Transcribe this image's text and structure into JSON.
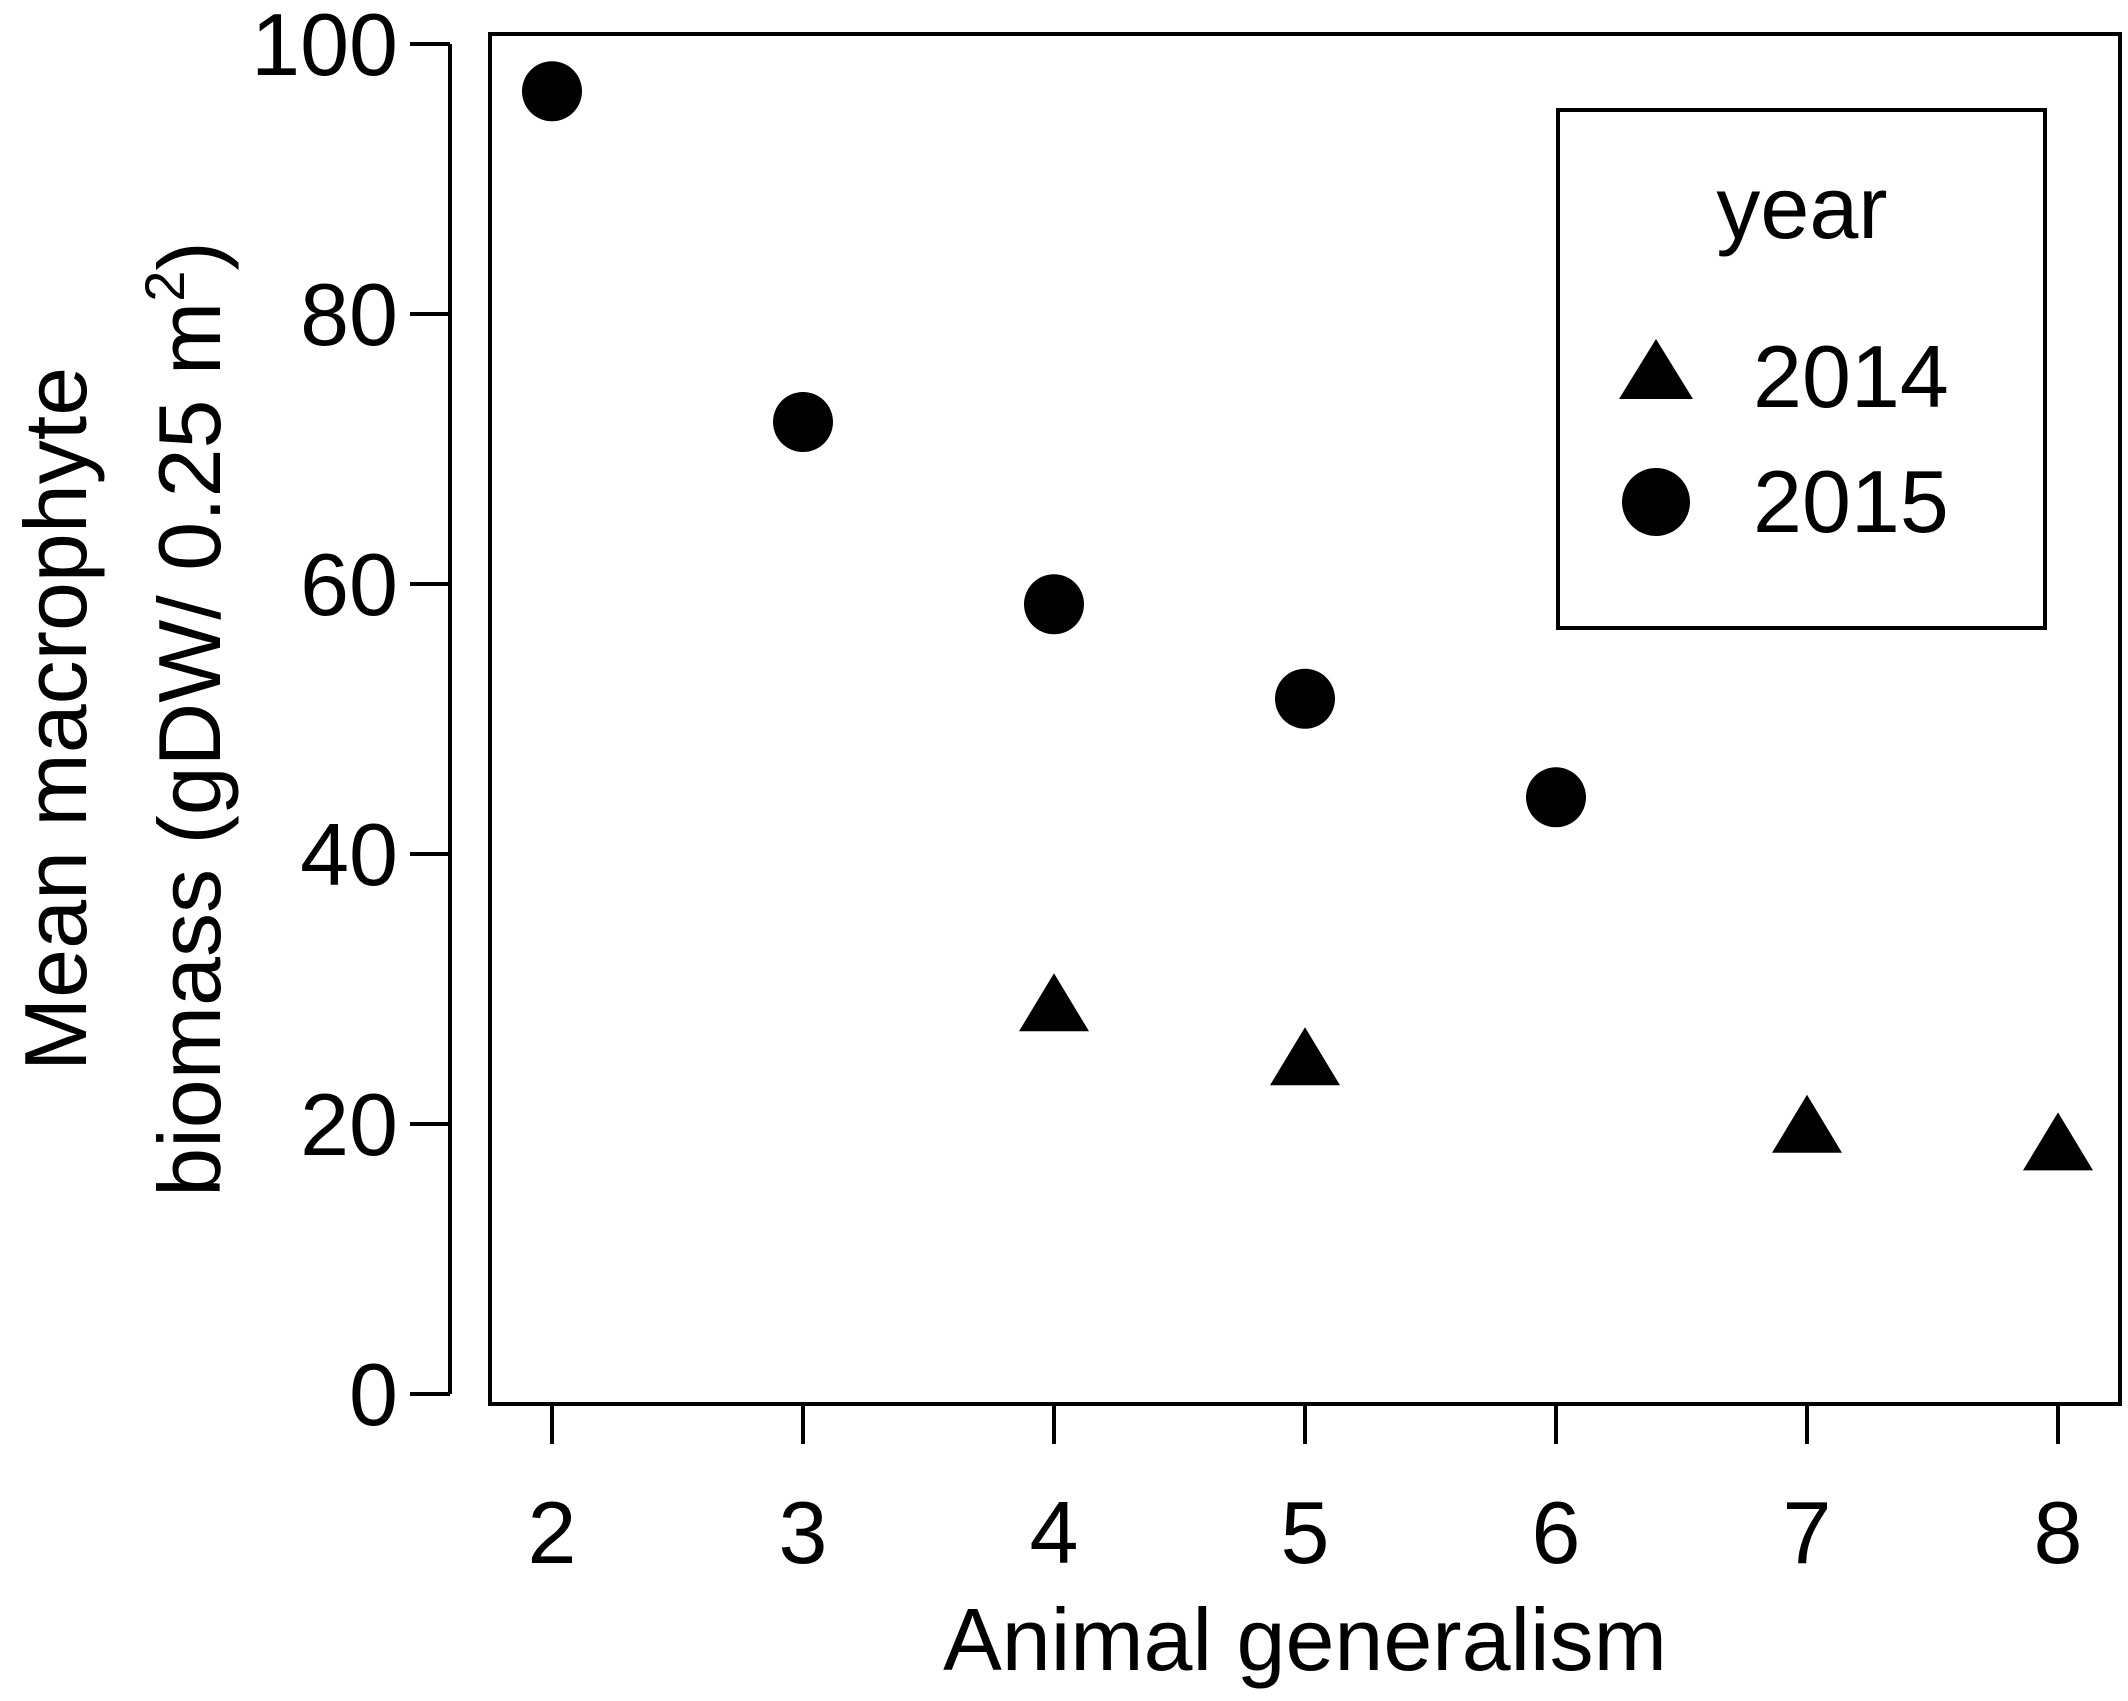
{
  "chart_data": {
    "type": "scatter",
    "xlabel": "Animal generalism",
    "ylabel_line1": "Mean macrophyte",
    "ylabel_line2_main": "biomass (gDW/ 0.25 m",
    "ylabel_line2_sup": "2",
    "ylabel_line2_end": ")",
    "xlim": [
      2,
      8
    ],
    "ylim": [
      0,
      100
    ],
    "xticks": [
      2,
      3,
      4,
      5,
      6,
      7,
      8
    ],
    "yticks": [
      0,
      20,
      40,
      60,
      80,
      100
    ],
    "legend": {
      "title": "year",
      "position": "top-right"
    },
    "series": [
      {
        "name": "2014",
        "marker": "triangle",
        "x": [
          4,
          5,
          7,
          8
        ],
        "y": [
          28.5,
          24.5,
          19.5,
          18.2
        ]
      },
      {
        "name": "2015",
        "marker": "circle",
        "x": [
          2,
          3,
          4,
          5,
          6
        ],
        "y": [
          96.5,
          72,
          58.5,
          51.5,
          44.2
        ]
      }
    ],
    "grid": false,
    "colors": {
      "marker": "#000000",
      "axis": "#000000",
      "background": "#ffffff"
    }
  }
}
